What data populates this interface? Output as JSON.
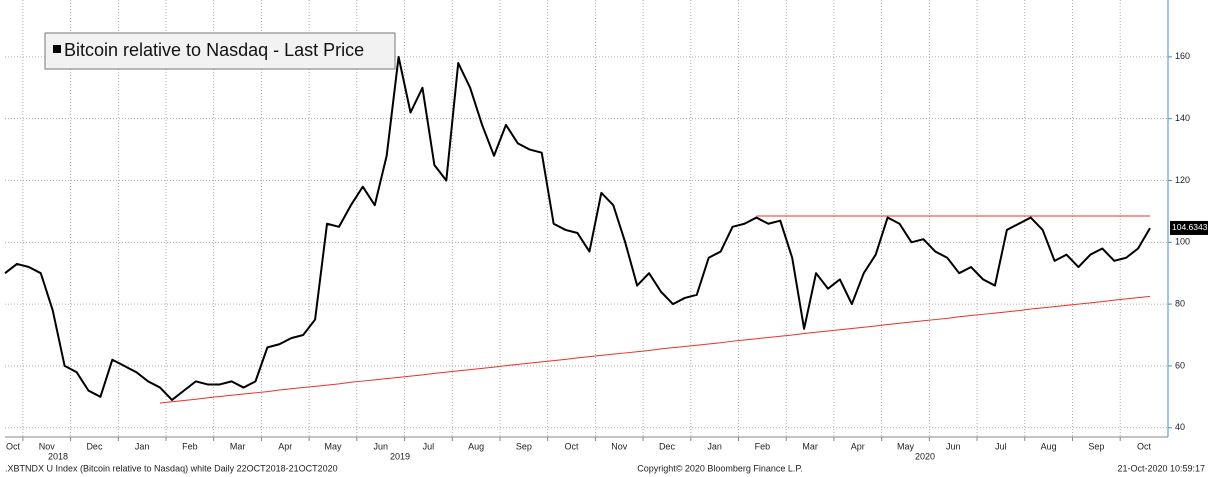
{
  "chart_data": {
    "type": "line",
    "title": "Bitcoin relative to Nasdaq - Last Price",
    "categories": [
      "Oct",
      null,
      "Nov",
      null,
      null,
      null,
      "Dec",
      null,
      null,
      null,
      "Jan",
      null,
      null,
      null,
      "Feb",
      null,
      null,
      null,
      "Mar",
      null,
      null,
      null,
      "Apr",
      null,
      null,
      null,
      "May",
      null,
      null,
      null,
      "Jun",
      null,
      null,
      null,
      "Jul",
      null,
      null,
      null,
      "Aug",
      null,
      null,
      null,
      "Sep",
      null,
      null,
      null,
      "Oct",
      null,
      null,
      null,
      "Nov",
      null,
      null,
      null,
      "Dec",
      null,
      null,
      null,
      "Jan",
      null,
      null,
      null,
      "Feb",
      null,
      null,
      null,
      "Mar",
      null,
      null,
      null,
      "Apr",
      null,
      null,
      null,
      "May",
      null,
      null,
      null,
      "Jun",
      null,
      null,
      null,
      "Jul",
      null,
      null,
      null,
      "Aug",
      null,
      null,
      null,
      "Sep",
      null,
      null,
      null,
      "Oct",
      null,
      null
    ],
    "year_labels": [
      "2018",
      "2019",
      "2020"
    ],
    "series": [
      {
        "name": "Bitcoin relative to Nasdaq - Last Price",
        "color": "#000000",
        "values": [
          90,
          93,
          92,
          90,
          78,
          60,
          58,
          52,
          50,
          62,
          60,
          58,
          55,
          53,
          49,
          52,
          55,
          54,
          54,
          55,
          53,
          55,
          66,
          67,
          69,
          70,
          75,
          106,
          105,
          112,
          118,
          112,
          128,
          160,
          142,
          150,
          125,
          120,
          158,
          150,
          138,
          128,
          138,
          132,
          130,
          129,
          106,
          104,
          103,
          97,
          116,
          112,
          100,
          86,
          90,
          84,
          80,
          82,
          83,
          95,
          97,
          105,
          106,
          108,
          106,
          107,
          95,
          72,
          90,
          85,
          88,
          80,
          90,
          96,
          108,
          106,
          100,
          101,
          97,
          95,
          90,
          92,
          88,
          86,
          104,
          106,
          108,
          104,
          94,
          96,
          92,
          96,
          98,
          94,
          95,
          98,
          104.6
        ]
      }
    ],
    "last_value": 104.6343,
    "reference_lines": [
      {
        "color": "#e8332a",
        "values": [
          null,
          null,
          null,
          null,
          null,
          null,
          null,
          null,
          null,
          null,
          null,
          null,
          null,
          48.0,
          48.4,
          48.8,
          49.2,
          49.7,
          50.1,
          50.5,
          50.9,
          51.3,
          51.7,
          52.2,
          52.6,
          53.0,
          53.4,
          53.8,
          54.2,
          54.7,
          55.1,
          55.5,
          55.9,
          56.3,
          56.7,
          57.1,
          57.6,
          58.0,
          58.4,
          58.8,
          59.2,
          59.6,
          60.1,
          60.5,
          60.9,
          61.3,
          61.7,
          62.1,
          62.6,
          63.0,
          63.4,
          63.8,
          64.2,
          64.6,
          65.0,
          65.5,
          65.9,
          66.3,
          66.7,
          67.1,
          67.5,
          68.0,
          68.4,
          68.8,
          69.2,
          69.6,
          70.0,
          70.5,
          70.9,
          71.3,
          71.7,
          72.1,
          72.5,
          72.9,
          73.4,
          73.8,
          74.2,
          74.6,
          75.0,
          75.4,
          75.9,
          76.3,
          76.7,
          77.1,
          77.5,
          77.9,
          78.4,
          78.8,
          79.2,
          79.6,
          80.0,
          80.4,
          80.8,
          81.3,
          81.7,
          82.1,
          82.5
        ]
      },
      {
        "color": "#e8332a",
        "values": [
          null,
          null,
          null,
          null,
          null,
          null,
          null,
          null,
          null,
          null,
          null,
          null,
          null,
          null,
          null,
          null,
          null,
          null,
          null,
          null,
          null,
          null,
          null,
          null,
          null,
          null,
          null,
          null,
          null,
          null,
          null,
          null,
          null,
          null,
          null,
          null,
          null,
          null,
          null,
          null,
          null,
          null,
          null,
          null,
          null,
          null,
          null,
          null,
          null,
          null,
          null,
          null,
          null,
          null,
          null,
          null,
          null,
          null,
          null,
          null,
          null,
          null,
          null,
          108.5,
          108.5,
          108.5,
          108.5,
          108.5,
          108.5,
          108.5,
          108.5,
          108.5,
          108.5,
          108.5,
          108.5,
          108.5,
          108.5,
          108.5,
          108.5,
          108.5,
          108.5,
          108.5,
          108.5,
          108.5,
          108.5,
          108.5,
          108.5,
          108.5,
          108.5,
          108.5,
          108.5,
          108.5,
          108.5,
          108.5,
          108.5,
          108.5,
          108.5
        ]
      }
    ],
    "ylim": [
      37,
      178.4
    ],
    "yticks": [
      40,
      60,
      80,
      100,
      120,
      140,
      160
    ],
    "grid": true,
    "footer_left": ".XBTNDX U Index (Bitcoin relative to Nasdaq) white  Daily 22OCT2018-21OCT2020",
    "footer_center": "Copyright© 2020 Bloomberg Finance L.P.",
    "footer_right": "21-Oct-2020 10:59:17"
  }
}
